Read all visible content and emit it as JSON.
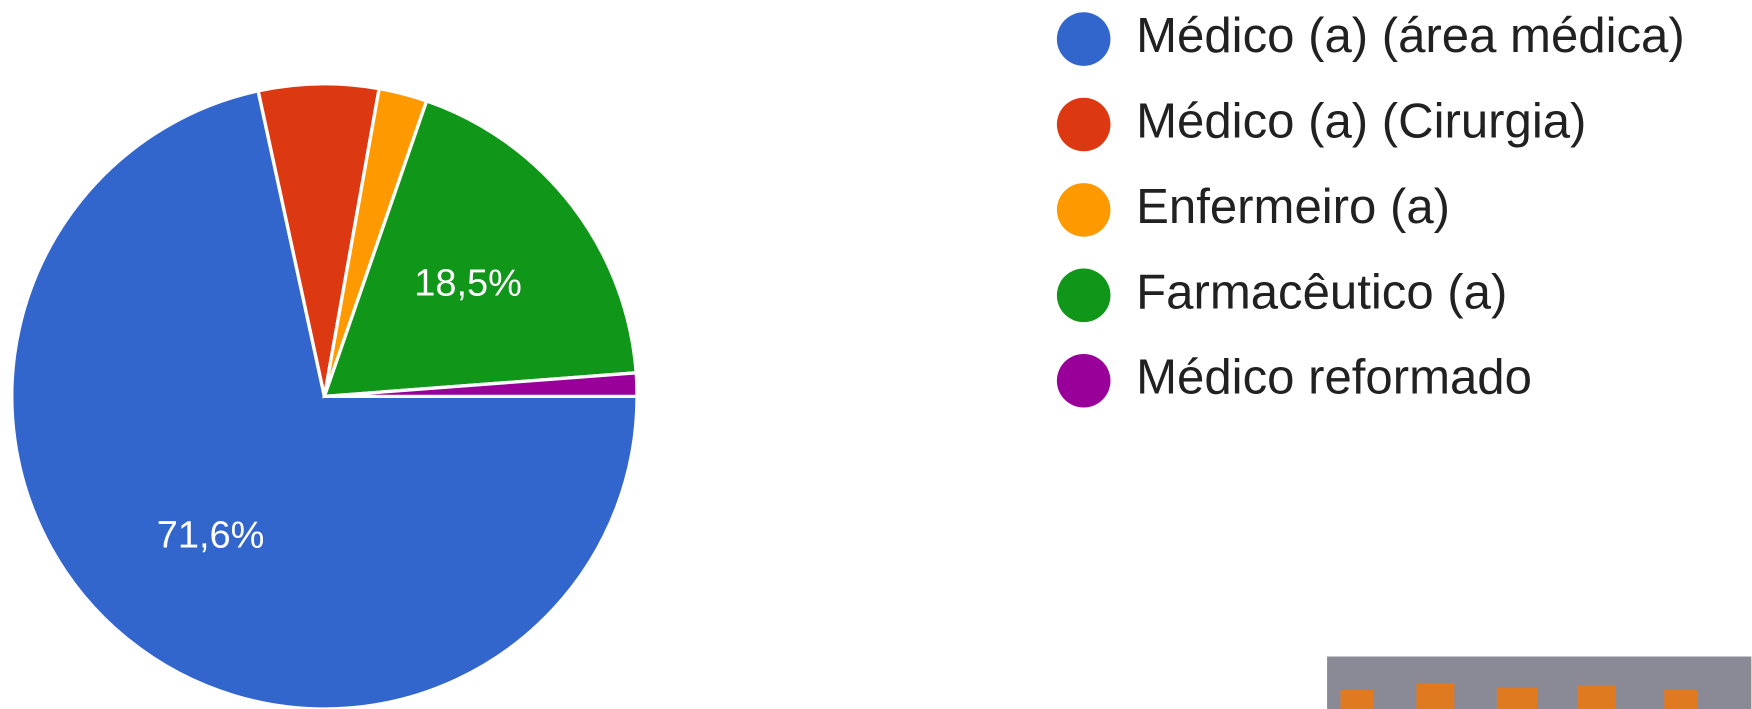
{
  "chart_data": {
    "type": "pie",
    "categories": [
      "Médico (a) (área médica)",
      "Médico (a) (Cirurgia)",
      "Enfermeiro (a)",
      "Farmacêutico (a)",
      "Médico reformado"
    ],
    "values": [
      71.6,
      6.2,
      2.5,
      18.5,
      1.2
    ],
    "value_labels": [
      "71,6%",
      null,
      null,
      "18,5%",
      null
    ],
    "colors": [
      "#3366cc",
      "#dc3912",
      "#ff9900",
      "#109618",
      "#990099"
    ],
    "legend": "right"
  }
}
